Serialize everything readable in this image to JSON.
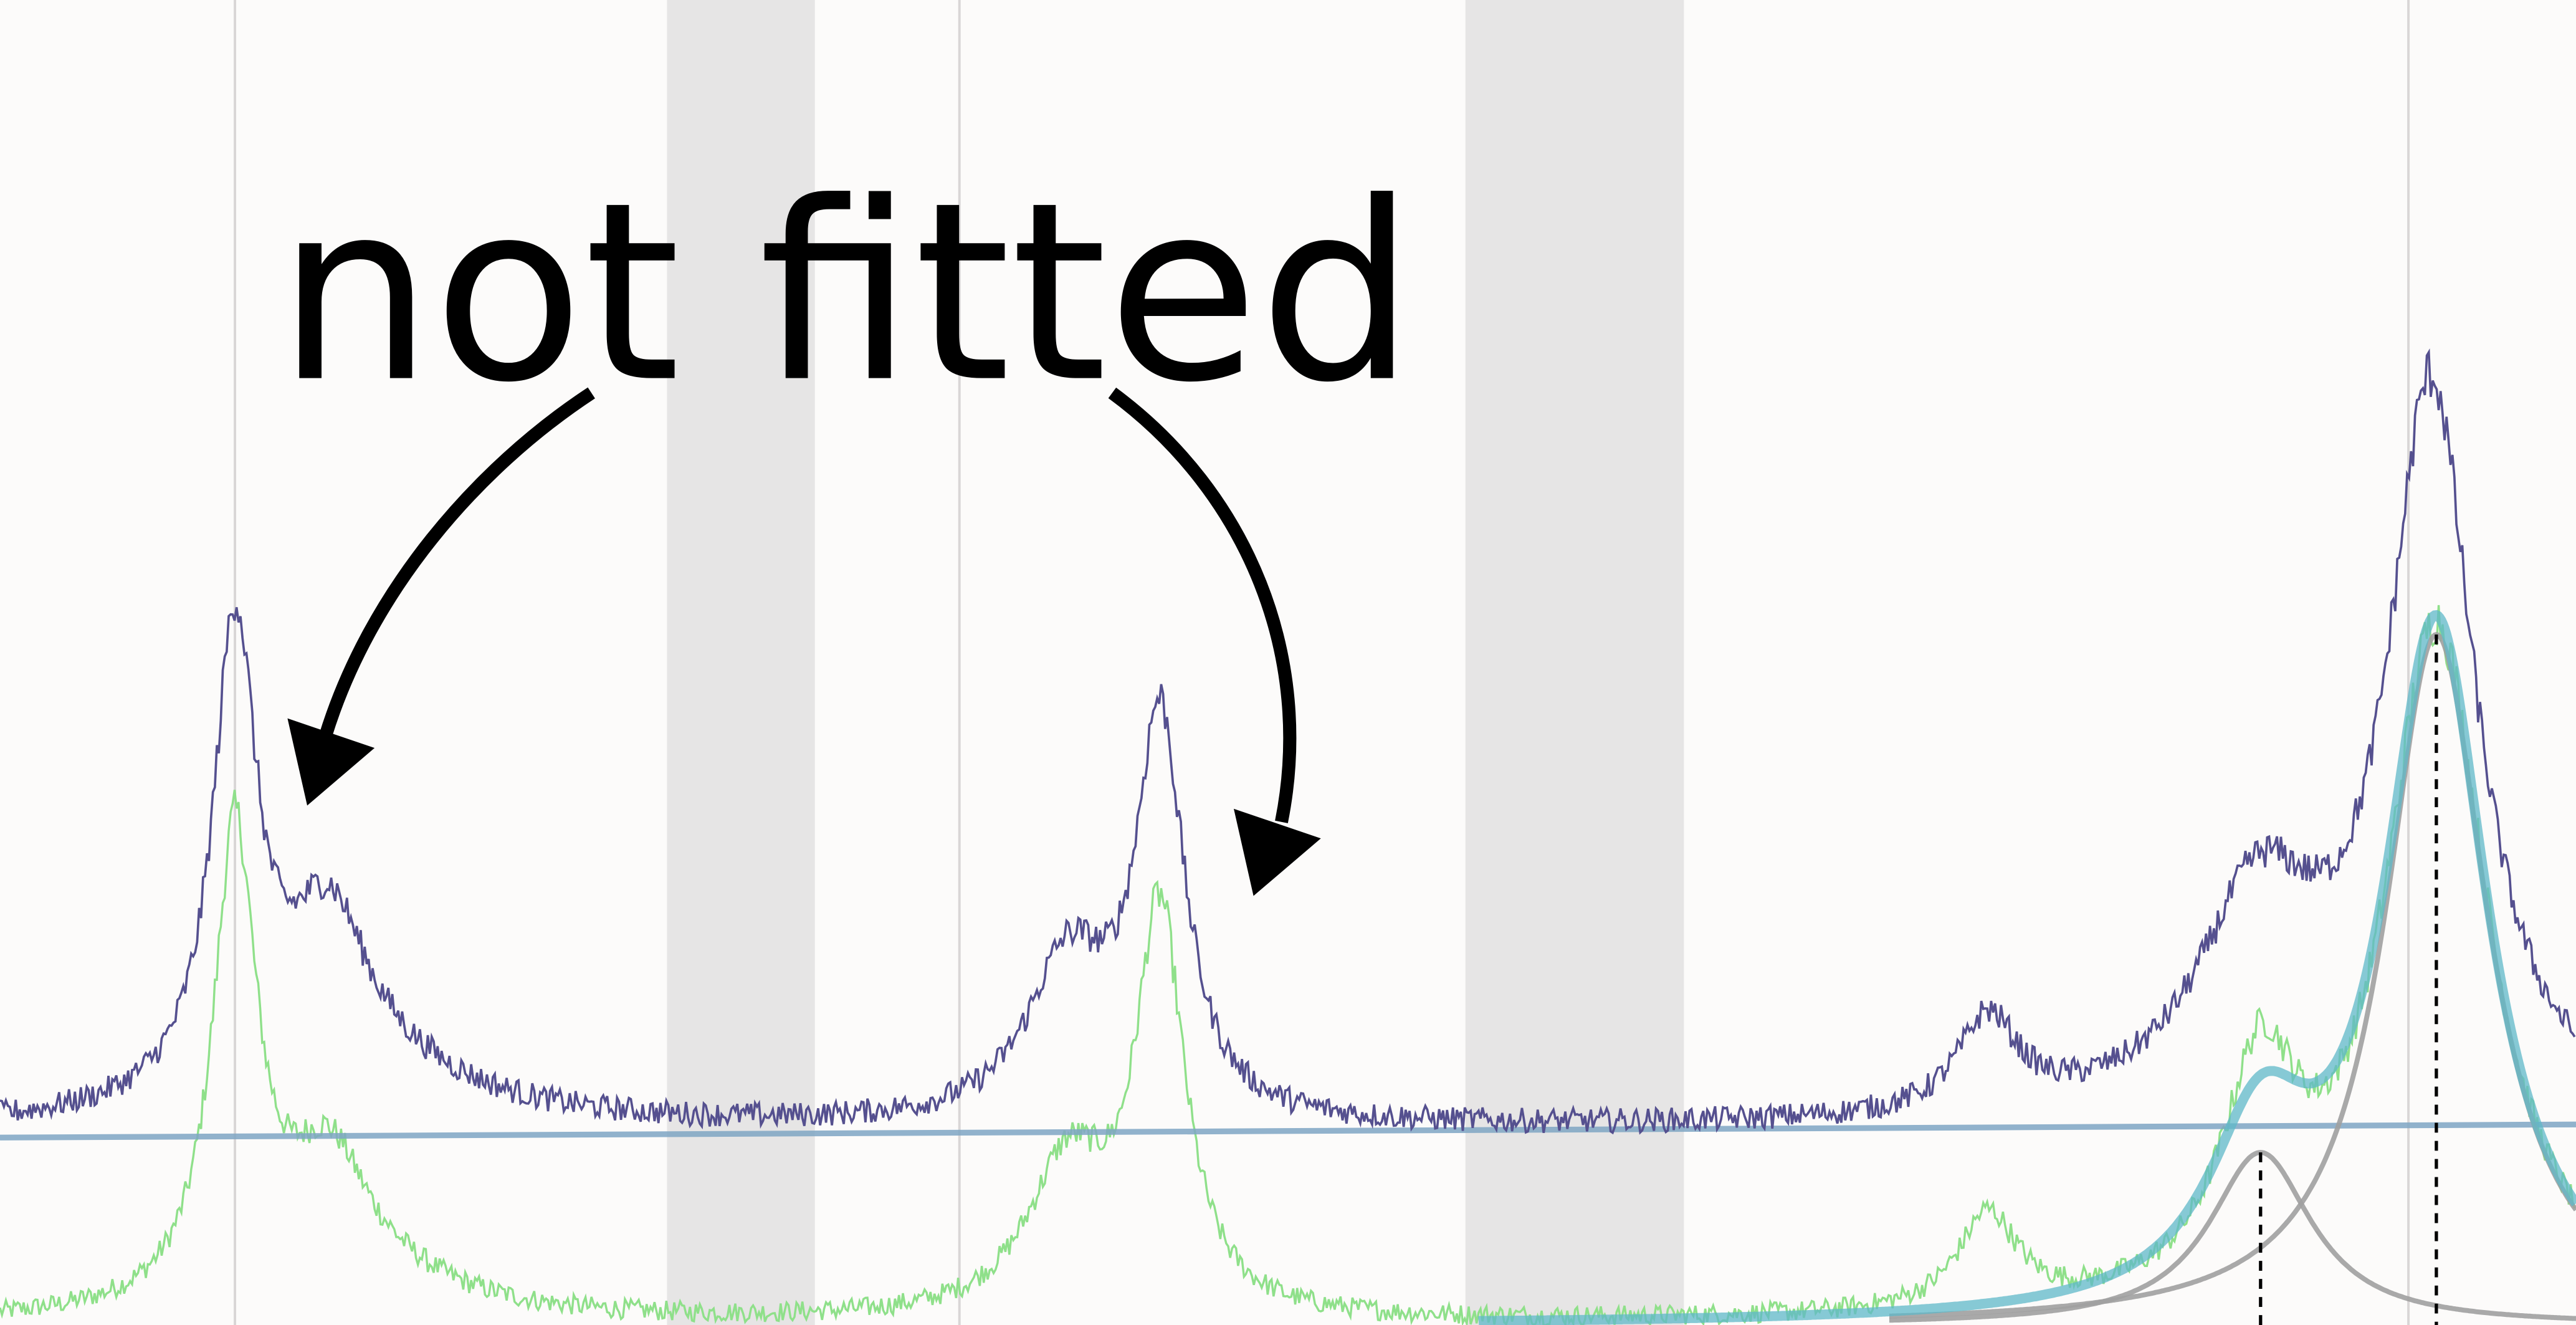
{
  "chart_data": {
    "type": "line",
    "title": "",
    "xlabel": "",
    "ylabel": "",
    "xlim": [
      0,
      1568
    ],
    "ylim": [
      0,
      806
    ],
    "grid": false,
    "annotation": {
      "text": "not fitted",
      "arrow_targets": [
        "peak-1",
        "peak-2"
      ]
    },
    "excluded_regions": [
      [
        406,
        496
      ],
      [
        892,
        1025
      ]
    ],
    "vertical_reference_lines": [
      143,
      584,
      1466
    ],
    "component_centers": [
      1376,
      1483
    ],
    "baseline": {
      "start": 114,
      "end": 122
    },
    "raw_signal": {
      "color": "#55508f",
      "baseline": 118,
      "noise": 5,
      "peaks": [
        {
          "x": 143,
          "amp": 282,
          "width": 16
        },
        {
          "x": 200,
          "amp": 90,
          "width": 28
        },
        {
          "x": 210,
          "amp": 40,
          "width": 80
        },
        {
          "x": 650,
          "amp": 95,
          "width": 30
        },
        {
          "x": 706,
          "amp": 240,
          "width": 18
        },
        {
          "x": 1210,
          "amp": 58,
          "width": 22
        },
        {
          "x": 1375,
          "amp": 130,
          "width": 45
        },
        {
          "x": 1480,
          "amp": 440,
          "width": 32
        }
      ]
    },
    "residual_signal": {
      "color": "#8fe08a",
      "baseline": 0,
      "noise": 6,
      "peaks": [
        {
          "x": 143,
          "amp": 282,
          "width": 16
        },
        {
          "x": 200,
          "amp": 70,
          "width": 28
        },
        {
          "x": 210,
          "amp": 30,
          "width": 70
        },
        {
          "x": 650,
          "amp": 90,
          "width": 30
        },
        {
          "x": 706,
          "amp": 240,
          "width": 18
        },
        {
          "x": 1210,
          "amp": 58,
          "width": 22
        },
        {
          "x": 1376,
          "amp": 135,
          "width": 28
        },
        {
          "x": 1483,
          "amp": 420,
          "width": 38
        }
      ]
    },
    "fit_components": [
      {
        "x": 1376,
        "amp": 105,
        "width": 38
      },
      {
        "x": 1483,
        "amp": 420,
        "width": 38
      }
    ],
    "colors": {
      "background": "#fcfbfa",
      "excluded_region": "#e6e5e5",
      "reference_line": "#d9d6d6",
      "baseline": "#7fa6c4",
      "fit_envelope": "#5fb8c8",
      "fit_component": "#a0a0a0",
      "center_marker": "#000000",
      "annotation": "#000000"
    }
  }
}
